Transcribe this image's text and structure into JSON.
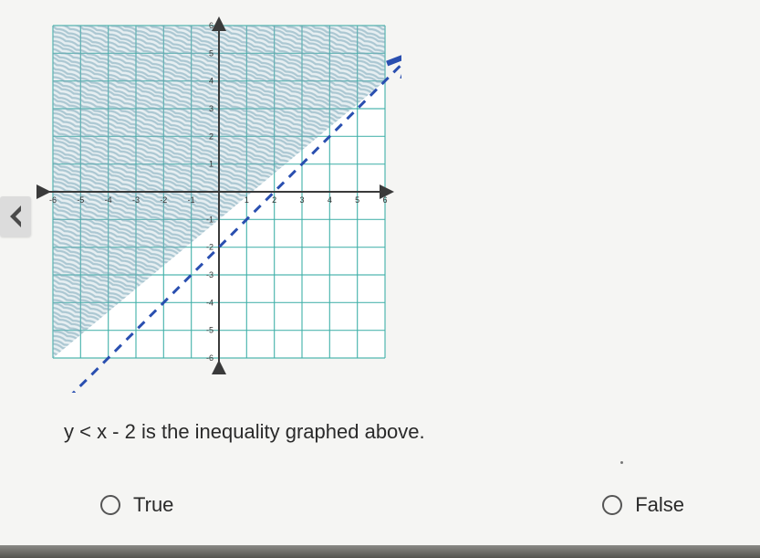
{
  "graph": {
    "type": "inequality-plot",
    "xlim": [
      -6,
      6
    ],
    "ylim": [
      -6,
      6
    ],
    "xtick_step": 1,
    "ytick_step": 1,
    "xticks": [
      -6,
      -5,
      -4,
      -3,
      -2,
      -1,
      1,
      2,
      3,
      4,
      5,
      6
    ],
    "yticks": [
      -6,
      -5,
      -4,
      -3,
      -2,
      -1,
      1,
      2,
      3,
      4,
      5,
      6
    ],
    "boundary_line": {
      "equation": "y = x - 2",
      "slope": 1,
      "intercept": -2,
      "style": "dashed",
      "color": "#2a4fb0",
      "width": 3,
      "dash": "10 8",
      "arrowheads": true
    },
    "shaded_region": "above",
    "shade_color": "#7aa8b8",
    "shade_opacity": 0.55,
    "grid_color": "#3fb0a8",
    "grid_width": 1.2,
    "axis_color": "#3a3a3a",
    "axis_width": 2,
    "background_color": "#ffffff",
    "label_fontsize": 9,
    "label_color": "#333333"
  },
  "question": {
    "text": "y < x - 2 is the inequality graphed above."
  },
  "options": {
    "true_label": "True",
    "false_label": "False"
  },
  "nav": {
    "prev_icon": "chevron-left"
  }
}
